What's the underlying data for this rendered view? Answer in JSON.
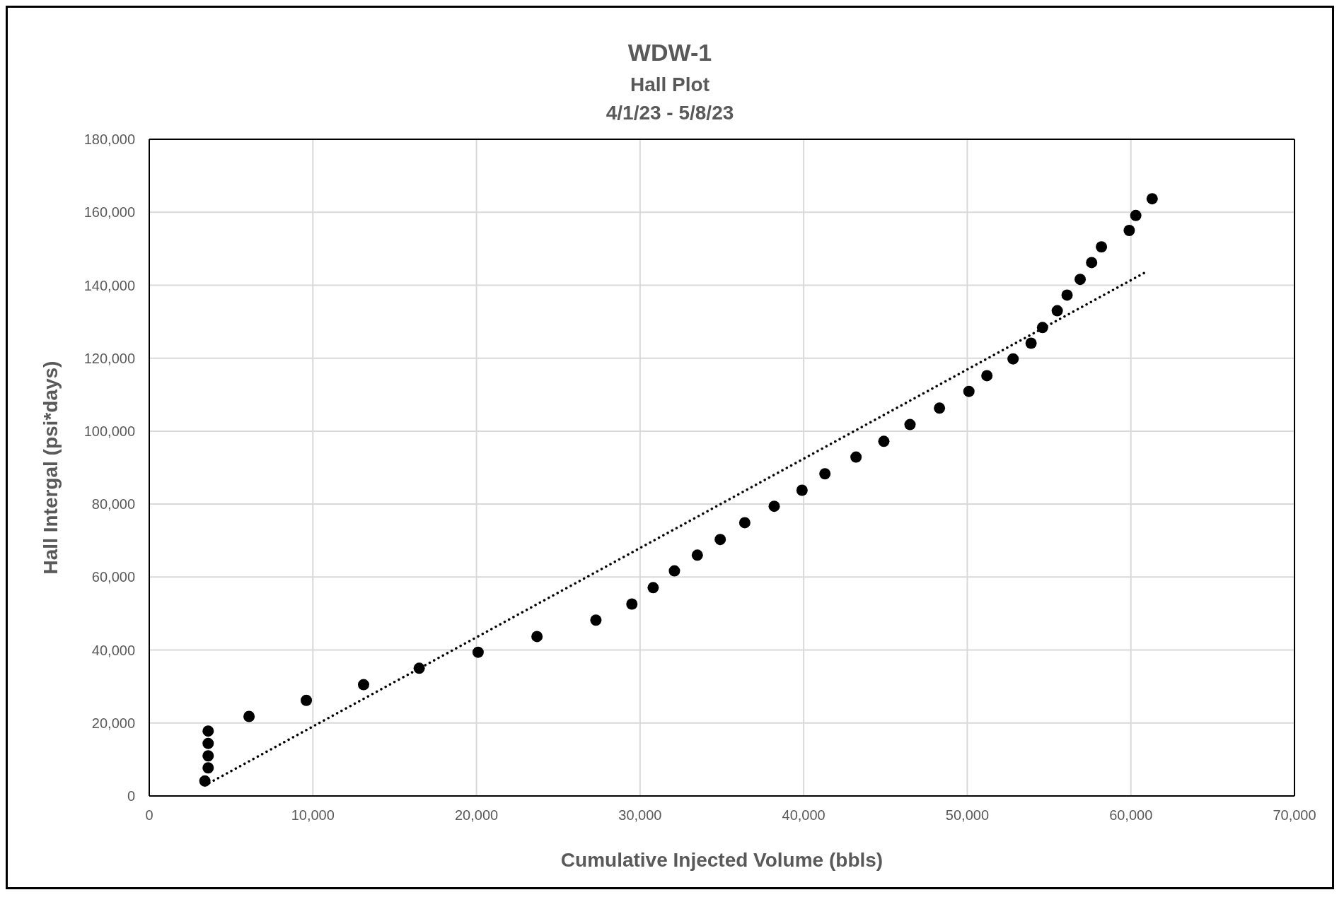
{
  "chart_data": {
    "type": "scatter",
    "title": "WDW-1",
    "subtitle": "Hall Plot",
    "annotations": [
      "4/1/23 - 5/8/23"
    ],
    "xlabel": "Cumulative Injected Volume  (bbls)",
    "ylabel": "Hall Intergal (psi*days)",
    "xlim": [
      0,
      70000
    ],
    "xticks": [
      0,
      {
        "value": 10000,
        "label": "10,000"
      },
      {
        "value": 20000,
        "label": "20,000"
      },
      {
        "value": 30000,
        "label": "30,000"
      },
      {
        "value": 40000,
        "label": "40,000"
      },
      {
        "value": 50000,
        "label": "50,000"
      },
      {
        "value": 60000,
        "label": "60,000"
      },
      {
        "value": 70000,
        "label": "70,000"
      }
    ],
    "ylim": [
      0,
      180000
    ],
    "yticks": [
      0,
      {
        "value": 20000,
        "label": "20,000"
      },
      {
        "value": 40000,
        "label": "40,000"
      },
      {
        "value": 60000,
        "label": "60,000"
      },
      {
        "value": 80000,
        "label": "80,000"
      },
      {
        "value": 100000,
        "label": "100,000"
      },
      {
        "value": 120000,
        "label": "120,000"
      },
      {
        "value": 140000,
        "label": "140,000"
      },
      {
        "value": 160000,
        "label": "160,000"
      },
      {
        "value": 180000,
        "label": "180,000"
      }
    ],
    "grid": true,
    "legend": false,
    "series": [
      {
        "type": "scatter",
        "marker": "circle",
        "color": "#000000",
        "x": [
          3400,
          3600,
          3600,
          3600,
          3600,
          6100,
          9600,
          13100,
          16500,
          20100,
          23700,
          27300,
          29500,
          30800,
          32100,
          33500,
          34900,
          36400,
          38200,
          39900,
          41300,
          43200,
          44900,
          46500,
          48300,
          50100,
          51200,
          52800,
          53900,
          54600,
          55500,
          56100,
          56900,
          57600,
          58200,
          59900,
          60300,
          61300
        ],
        "values": [
          4100,
          7700,
          11000,
          14400,
          17800,
          21800,
          26200,
          30500,
          35000,
          39400,
          43700,
          48200,
          52600,
          57100,
          61700,
          66000,
          70300,
          74900,
          79400,
          83800,
          88300,
          92900,
          97200,
          101800,
          106300,
          110900,
          115200,
          119800,
          124100,
          128400,
          133000,
          137300,
          141600,
          146200,
          150500,
          155000,
          159100,
          163700
        ]
      },
      {
        "type": "line",
        "marker": "none",
        "line_style": "dotted",
        "color": "#000000",
        "x": [
          3400,
          61000
        ],
        "values": [
          2900,
          143800
        ]
      }
    ]
  }
}
